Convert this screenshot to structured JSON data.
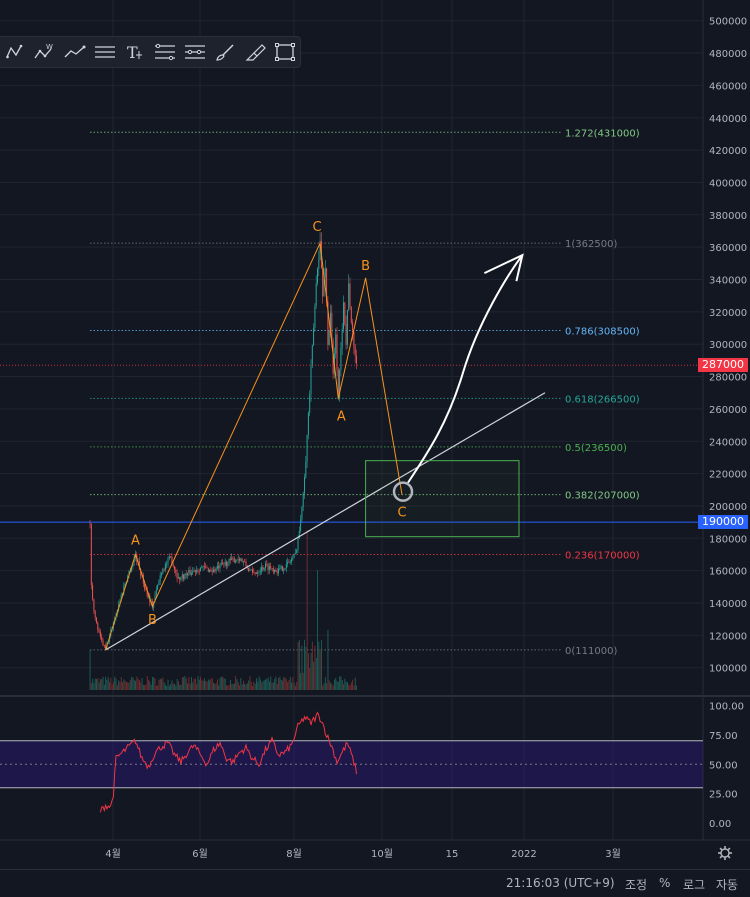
{
  "toolbar": {
    "items": [
      {
        "name": "xabcd-pattern-icon"
      },
      {
        "name": "elliott-wave-icon",
        "label": "W"
      },
      {
        "name": "trend-line-icon"
      },
      {
        "name": "horizontal-lines-icon"
      },
      {
        "name": "text-tool-icon",
        "label": "T"
      },
      {
        "name": "fib-retracement-icon"
      },
      {
        "name": "fib-extension-icon"
      },
      {
        "name": "brush-icon"
      },
      {
        "name": "highlighter-icon"
      },
      {
        "name": "rectangle-icon"
      }
    ]
  },
  "chart_data": [
    {
      "type": "candlestick",
      "y_axis": {
        "ticks": [
          100000,
          120000,
          140000,
          160000,
          180000,
          200000,
          220000,
          240000,
          260000,
          280000,
          300000,
          320000,
          340000,
          360000,
          380000,
          400000,
          420000,
          440000,
          460000,
          480000,
          500000
        ],
        "tick_labels": [
          "100000",
          "120000",
          "140000",
          "160000",
          "180000",
          "200000",
          "220000",
          "240000",
          "260000",
          "280000",
          "300000",
          "320000",
          "340000",
          "360000",
          "380000",
          "400000",
          "420000",
          "440000",
          "460000",
          "480000",
          "500000"
        ]
      },
      "x_axis": {
        "tick_labels": [
          "4월",
          "6월",
          "8월",
          "10월",
          "15",
          "2022",
          "3월"
        ]
      },
      "price_series": {
        "waypoints": [
          [
            0,
            190000
          ],
          [
            1,
            150000
          ],
          [
            4,
            130000
          ],
          [
            8,
            118000
          ],
          [
            12,
            111000
          ],
          [
            18,
            128000
          ],
          [
            26,
            150000
          ],
          [
            35,
            170000
          ],
          [
            42,
            150000
          ],
          [
            48,
            138000
          ],
          [
            55,
            160000
          ],
          [
            62,
            168000
          ],
          [
            68,
            155000
          ],
          [
            75,
            158000
          ],
          [
            85,
            162000
          ],
          [
            95,
            160000
          ],
          [
            105,
            165000
          ],
          [
            115,
            168000
          ],
          [
            125,
            158000
          ],
          [
            135,
            163000
          ],
          [
            145,
            160000
          ],
          [
            152,
            164000
          ],
          [
            158,
            170000
          ],
          [
            162,
            190000
          ],
          [
            166,
            230000
          ],
          [
            169,
            270000
          ],
          [
            172,
            310000
          ],
          [
            175,
            350000
          ],
          [
            177,
            362500
          ],
          [
            179,
            330000
          ],
          [
            181,
            350000
          ],
          [
            183,
            300000
          ],
          [
            185,
            320000
          ],
          [
            187,
            280000
          ],
          [
            189,
            305000
          ],
          [
            191,
            268000
          ],
          [
            193,
            295000
          ],
          [
            195,
            330000
          ],
          [
            197,
            300000
          ],
          [
            199,
            340000
          ],
          [
            201,
            310000
          ],
          [
            203,
            300000
          ],
          [
            205,
            287000
          ]
        ],
        "last_price": 287000,
        "last_price_label": "287000"
      },
      "volume_bars": "present",
      "fibonacci_levels": [
        {
          "ratio": "1.272",
          "value": 431000,
          "label": "1.272(431000)",
          "color": "#81c784"
        },
        {
          "ratio": "1",
          "value": 362500,
          "label": "1(362500)",
          "color": "#787b86"
        },
        {
          "ratio": "0.786",
          "value": 308500,
          "label": "0.786(308500)",
          "color": "#64b5f6"
        },
        {
          "ratio": "0.618",
          "value": 266500,
          "label": "0.618(266500)",
          "color": "#26a69a"
        },
        {
          "ratio": "0.5",
          "value": 236500,
          "label": "0.5(236500)",
          "color": "#4caf50"
        },
        {
          "ratio": "0.382",
          "value": 207000,
          "label": "0.382(207000)",
          "color": "#81c784"
        },
        {
          "ratio": "0.236",
          "value": 170000,
          "label": "0.236(170000)",
          "color": "#f23645"
        },
        {
          "ratio": "0",
          "value": 111000,
          "label": "0(111000)",
          "color": "#787b86"
        }
      ],
      "horizontal_line": {
        "value": 190000,
        "label": "190000",
        "color": "#2962ff"
      },
      "wave_labels": [
        {
          "label": "A",
          "x": 35,
          "y": 170000
        },
        {
          "label": "B",
          "x": 48,
          "y": 138000
        },
        {
          "label": "C",
          "x": 177,
          "y": 362500
        },
        {
          "label": "A",
          "x": 191,
          "y": 266500
        },
        {
          "label": "B",
          "x": 212,
          "y": 341000
        },
        {
          "label": "C",
          "x": 240,
          "y": 207000
        }
      ],
      "wave_path": [
        [
          12,
          111000
        ],
        [
          35,
          170000
        ],
        [
          48,
          138000
        ],
        [
          177,
          362500
        ],
        [
          191,
          266500
        ],
        [
          212,
          341000
        ],
        [
          240,
          207000
        ]
      ],
      "support_trendline": {
        "from": [
          12,
          111000
        ],
        "to": [
          350,
          270000
        ]
      },
      "target_box": {
        "x_from": 212,
        "x_to": 330,
        "y_from": 181000,
        "y_to": 228000
      },
      "projection_arrow": {
        "from": [
          240,
          207000
        ],
        "to": [
          328,
          362500
        ]
      }
    },
    {
      "type": "line",
      "indicator": "RSI",
      "y_axis": {
        "ticks": [
          0,
          25,
          50,
          75,
          100
        ],
        "tick_labels": [
          "0.00",
          "25.00",
          "50.00",
          "75.00",
          "100.00"
        ]
      },
      "bands": {
        "upper": 70,
        "middle": 50,
        "lower": 30
      },
      "waypoints": [
        [
          8,
          10
        ],
        [
          12,
          15
        ],
        [
          16,
          14
        ],
        [
          18,
          25
        ],
        [
          20,
          55
        ],
        [
          25,
          60
        ],
        [
          30,
          65
        ],
        [
          35,
          70
        ],
        [
          40,
          55
        ],
        [
          45,
          48
        ],
        [
          50,
          60
        ],
        [
          55,
          65
        ],
        [
          60,
          68
        ],
        [
          65,
          58
        ],
        [
          70,
          52
        ],
        [
          75,
          60
        ],
        [
          80,
          66
        ],
        [
          85,
          58
        ],
        [
          90,
          50
        ],
        [
          95,
          62
        ],
        [
          100,
          68
        ],
        [
          105,
          55
        ],
        [
          110,
          52
        ],
        [
          115,
          60
        ],
        [
          120,
          64
        ],
        [
          125,
          55
        ],
        [
          130,
          50
        ],
        [
          135,
          62
        ],
        [
          140,
          70
        ],
        [
          145,
          58
        ],
        [
          150,
          60
        ],
        [
          155,
          66
        ],
        [
          160,
          82
        ],
        [
          165,
          90
        ],
        [
          170,
          85
        ],
        [
          175,
          92
        ],
        [
          178,
          88
        ],
        [
          182,
          75
        ],
        [
          186,
          65
        ],
        [
          190,
          52
        ],
        [
          194,
          60
        ],
        [
          198,
          68
        ],
        [
          202,
          55
        ],
        [
          205,
          44
        ]
      ]
    }
  ],
  "footer": {
    "clock": "21:16:03 (UTC+9)",
    "adjust_label": "조정",
    "percent_label": "%",
    "log_label": "로그",
    "auto_label": "자동"
  },
  "colors": {
    "background": "#131722",
    "grid": "#1f2430",
    "candle_up": "#26a69a",
    "candle_down": "#ef5350",
    "wave": "#f7931a",
    "rsi_line": "#f23645",
    "rsi_band": "#311b92",
    "axis_text": "#b2b5be"
  }
}
